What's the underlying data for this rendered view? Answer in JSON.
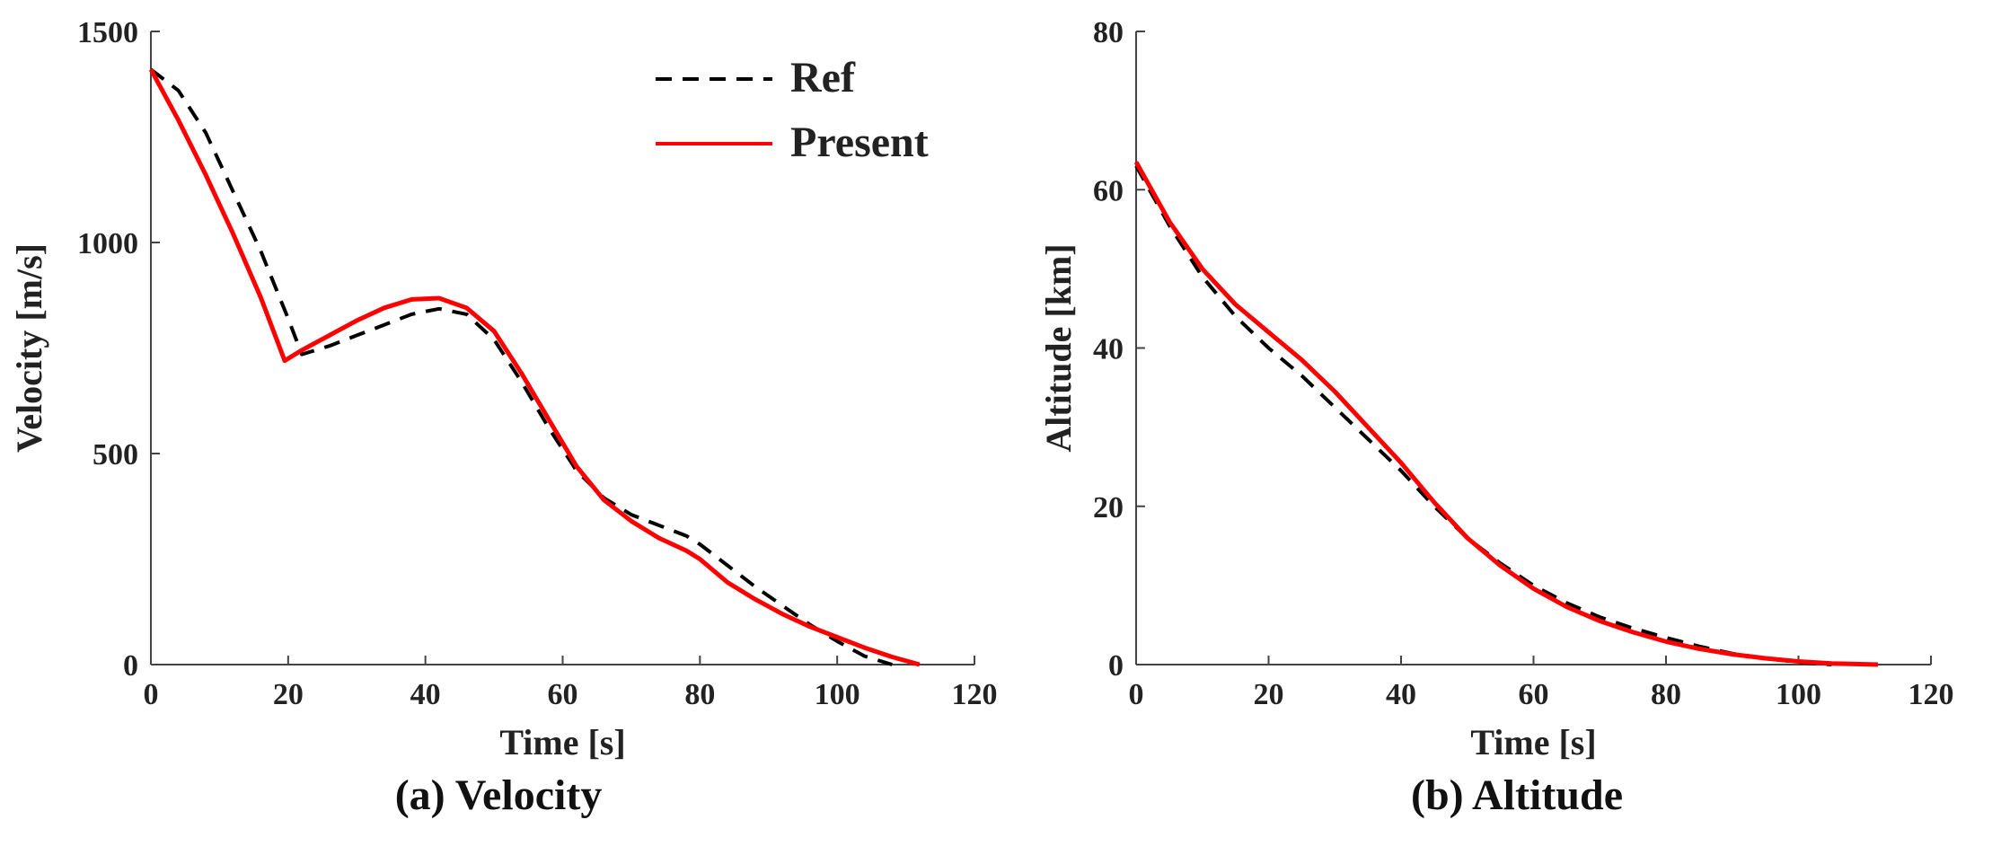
{
  "chart_data": [
    {
      "type": "line",
      "title": "",
      "caption": "(a) Velocity",
      "xlabel": "Time [s]",
      "ylabel": "Velocity [m/s]",
      "xlim": [
        0,
        120
      ],
      "ylim": [
        0,
        1500
      ],
      "xticks": [
        0,
        20,
        40,
        60,
        80,
        100,
        120
      ],
      "yticks": [
        0,
        500,
        1000,
        1500
      ],
      "legend": {
        "placement": "top-center",
        "entries": [
          "Ref",
          "Present"
        ]
      },
      "series": [
        {
          "name": "Ref",
          "style": "dashed",
          "color": "#000000",
          "x": [
            0,
            4,
            8,
            12,
            16,
            20,
            22,
            26,
            30,
            34,
            38,
            42,
            46,
            50,
            54,
            58,
            62,
            66,
            70,
            74,
            78,
            80,
            84,
            88,
            92,
            96,
            100,
            104,
            108
          ],
          "y": [
            1410,
            1360,
            1260,
            1120,
            980,
            820,
            735,
            755,
            780,
            805,
            830,
            843,
            830,
            770,
            670,
            560,
            460,
            395,
            355,
            330,
            305,
            285,
            235,
            185,
            140,
            95,
            55,
            20,
            0
          ]
        },
        {
          "name": "Present",
          "style": "solid",
          "color": "#ff0000",
          "x": [
            0,
            4,
            8,
            12,
            16,
            19.5,
            22,
            26,
            30,
            34,
            38,
            42,
            46,
            50,
            54,
            58,
            62,
            66,
            70,
            74,
            78,
            80,
            84,
            88,
            92,
            96,
            100,
            104,
            108,
            112
          ],
          "y": [
            1410,
            1290,
            1160,
            1020,
            870,
            720,
            745,
            780,
            815,
            845,
            865,
            868,
            845,
            790,
            690,
            580,
            470,
            390,
            340,
            300,
            270,
            250,
            195,
            155,
            120,
            90,
            65,
            40,
            18,
            0
          ]
        }
      ]
    },
    {
      "type": "line",
      "title": "",
      "caption": "(b) Altitude",
      "xlabel": "Time [s]",
      "ylabel": "Altitude [km]",
      "xlim": [
        0,
        120
      ],
      "ylim": [
        0,
        80
      ],
      "xticks": [
        0,
        20,
        40,
        60,
        80,
        100,
        120
      ],
      "yticks": [
        0,
        20,
        40,
        60,
        80
      ],
      "series": [
        {
          "name": "Ref",
          "style": "dashed",
          "color": "#000000",
          "x": [
            0,
            5,
            10,
            15,
            20,
            25,
            30,
            35,
            40,
            45,
            50,
            55,
            60,
            65,
            70,
            75,
            80,
            85,
            90,
            95,
            100,
            105
          ],
          "y": [
            63,
            55.5,
            49,
            44,
            40,
            36.5,
            32.5,
            28.5,
            24.5,
            20,
            16,
            12.8,
            10,
            7.8,
            6,
            4.6,
            3.4,
            2.3,
            1.4,
            0.8,
            0.3,
            0
          ]
        },
        {
          "name": "Present",
          "style": "solid",
          "color": "#ff0000",
          "x": [
            0,
            5,
            10,
            15,
            20,
            25,
            30,
            35,
            40,
            45,
            50,
            55,
            60,
            65,
            70,
            75,
            80,
            85,
            90,
            95,
            100,
            105,
            110,
            112
          ],
          "y": [
            63.5,
            56,
            50,
            45.5,
            42,
            38.5,
            34.5,
            30,
            25.5,
            20.5,
            16,
            12.5,
            9.6,
            7.3,
            5.5,
            4.1,
            2.9,
            2.0,
            1.3,
            0.8,
            0.4,
            0.15,
            0.05,
            0
          ]
        }
      ]
    }
  ]
}
